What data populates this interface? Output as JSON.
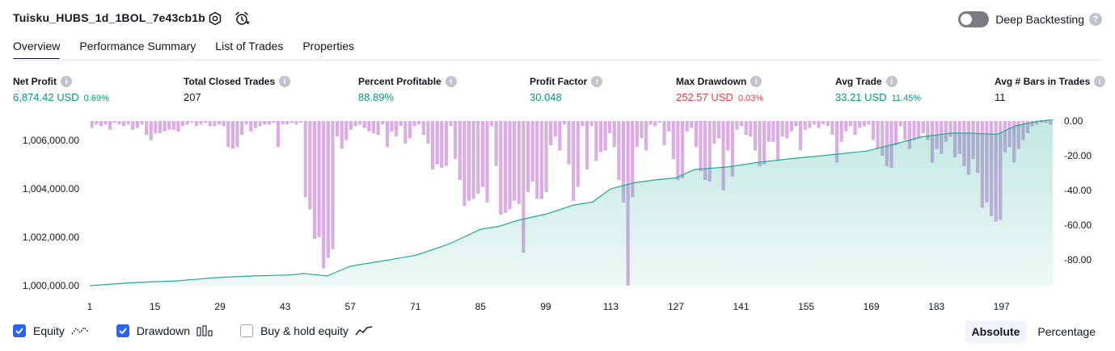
{
  "header": {
    "title": "Tuisku_HUBS_1d_1BOL_7e43cb1b"
  },
  "tabs": [
    {
      "label": "Overview",
      "active": true
    },
    {
      "label": "Performance Summary",
      "active": false
    },
    {
      "label": "List of Trades",
      "active": false
    },
    {
      "label": "Properties",
      "active": false
    }
  ],
  "deep_backtesting": {
    "label": "Deep Backtesting",
    "enabled": false,
    "help": "?"
  },
  "stats": [
    {
      "label": "Net Profit",
      "value": "6,874.42 USD",
      "pct": "0.69%",
      "color": "#089981"
    },
    {
      "label": "Total Closed Trades",
      "value": "207",
      "pct": "",
      "color": "#131722"
    },
    {
      "label": "Percent Profitable",
      "value": "88.89%",
      "pct": "",
      "color": "#089981"
    },
    {
      "label": "Profit Factor",
      "value": "30.048",
      "pct": "",
      "color": "#089981"
    },
    {
      "label": "Max Drawdown",
      "value": "252.57 USD",
      "pct": "0.03%",
      "color": "#f23645"
    },
    {
      "label": "Avg Trade",
      "value": "33.21 USD",
      "pct": "11.45%",
      "color": "#089981"
    },
    {
      "label": "Avg # Bars in Trades",
      "value": "11",
      "pct": "",
      "color": "#131722"
    }
  ],
  "chart_data": {
    "type": "area",
    "x_ticks": [
      "1",
      "15",
      "29",
      "43",
      "57",
      "71",
      "85",
      "99",
      "113",
      "127",
      "141",
      "155",
      "169",
      "183",
      "197"
    ],
    "y_left_ticks": [
      "1,000,000.00",
      "1,002,000.00",
      "1,004,000.00",
      "1,006,000.00"
    ],
    "y_right_ticks": [
      "0.00",
      "-20.00",
      "-40.00",
      "-60.00",
      "-80.00"
    ],
    "ylim_left": [
      1000000,
      1006800
    ],
    "ylim_right": [
      -95,
      0
    ],
    "xlim": [
      1,
      208
    ],
    "equity": {
      "name": "Equity",
      "color": "#22ab94",
      "x": [
        1,
        10,
        20,
        28,
        36,
        44,
        47,
        52,
        57,
        60,
        64,
        71,
        78,
        85,
        89,
        93,
        99,
        105,
        109,
        113,
        118,
        123,
        127,
        131,
        138,
        145,
        152,
        160,
        168,
        174,
        180,
        186,
        190,
        196,
        200,
        205,
        208
      ],
      "y": [
        1000000,
        1000120,
        1000200,
        1000330,
        1000400,
        1000440,
        1000500,
        1000400,
        1000800,
        1000900,
        1001020,
        1001250,
        1001700,
        1002330,
        1002450,
        1002700,
        1002950,
        1003330,
        1003450,
        1004000,
        1004250,
        1004380,
        1004450,
        1004800,
        1004900,
        1005100,
        1005250,
        1005400,
        1005560,
        1005850,
        1006150,
        1006300,
        1006300,
        1006250,
        1006600,
        1006800,
        1006850
      ]
    },
    "drawdown": {
      "name": "Drawdown",
      "color": "#ce93d8",
      "values": [
        -4,
        -2,
        -3,
        -2,
        -5,
        -1,
        -2,
        -3,
        -2,
        -5,
        -4,
        -2,
        -8,
        -11,
        -7,
        -7,
        -6,
        -5,
        -5,
        -6,
        -3,
        -2,
        -1,
        -3,
        -2,
        -1,
        -3,
        -3,
        -2,
        -3,
        -15,
        -16,
        -15,
        -8,
        -2,
        -6,
        -4,
        -3,
        -2,
        -2,
        -1,
        -15,
        -2,
        -2,
        -1,
        -2,
        -1,
        -44,
        -51,
        -68,
        -67,
        -85,
        -79,
        -74,
        -9,
        -16,
        -11,
        -5,
        -3,
        -2,
        -4,
        -6,
        -7,
        -8,
        -2,
        -15,
        -6,
        -9,
        -3,
        -13,
        -10,
        -3,
        -2,
        -8,
        -13,
        -28,
        -25,
        -27,
        -26,
        -3,
        -22,
        -34,
        -49,
        -46,
        -45,
        -42,
        -38,
        -47,
        -3,
        -26,
        -54,
        -53,
        -51,
        -46,
        -48,
        -76,
        -41,
        -35,
        -45,
        -45,
        -41,
        -14,
        -9,
        -17,
        -2,
        -25,
        -46,
        -38,
        -3,
        -28,
        -3,
        -23,
        -18,
        -17,
        -7,
        -15,
        -34,
        -47,
        -95,
        -44,
        -15,
        -10,
        -17,
        -2,
        -3,
        -1,
        -14,
        -6,
        -22,
        -34,
        -33,
        -6,
        -4,
        -15,
        -29,
        -34,
        -35,
        -13,
        -10,
        -40,
        -17,
        -32,
        -5,
        -3,
        -8,
        -9,
        -17,
        -26,
        -25,
        -12,
        -12,
        -23,
        -9,
        -10,
        -6,
        -3,
        -17,
        -5,
        -4,
        -2,
        -4,
        -2,
        -3,
        -8,
        -24,
        -12,
        -6,
        -3,
        -8,
        -4,
        -3,
        -2,
        -11,
        -16,
        -20,
        -26,
        -27,
        -14,
        -3,
        -11,
        -16,
        -11,
        -10,
        -7,
        -11,
        -24,
        -16,
        -19,
        -12,
        -9,
        -21,
        -19,
        -26,
        -31,
        -22,
        -30,
        -50,
        -47,
        -55,
        -58,
        -57,
        -18,
        -15,
        -24,
        -16,
        -11,
        -7,
        -3,
        -2,
        -1,
        -1,
        -2
      ]
    },
    "buy_hold": {
      "name": "Buy & hold equity"
    }
  },
  "legend": {
    "equity": {
      "label": "Equity",
      "checked": true,
      "icon": "equity-line-icon"
    },
    "drawdown": {
      "label": "Drawdown",
      "checked": true,
      "icon": "drawdown-bars-icon"
    },
    "buyhold": {
      "label": "Buy & hold equity",
      "checked": false,
      "icon": "buyhold-line-icon"
    }
  },
  "modes": [
    {
      "label": "Absolute",
      "active": true
    },
    {
      "label": "Percentage",
      "active": false
    }
  ]
}
